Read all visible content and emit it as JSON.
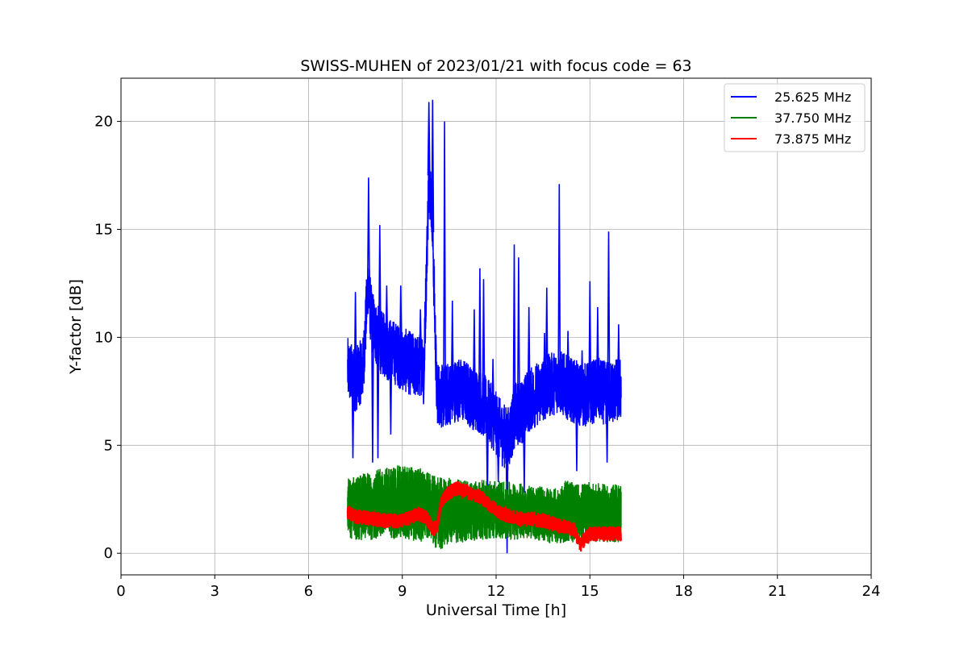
{
  "chart_data": {
    "type": "line",
    "title": "SWISS-MUHEN of 2023/01/21 with focus code = 63",
    "xlabel": "Universal Time [h]",
    "ylabel": "Y-factor [dB]",
    "xlim": [
      0,
      24
    ],
    "ylim": [
      -1.0,
      22.0
    ],
    "xticks": [
      0,
      3,
      6,
      9,
      12,
      15,
      18,
      21,
      24
    ],
    "yticks": [
      0,
      5,
      10,
      15,
      20
    ],
    "grid": true,
    "legend_position": "top-right",
    "series": [
      {
        "name": "25.625 MHz",
        "color": "#0000ff",
        "x": [
          7.25,
          7.5,
          7.75,
          7.9,
          8.0,
          8.15,
          8.3,
          8.5,
          8.75,
          9.0,
          9.25,
          9.5,
          9.7,
          9.85,
          9.95,
          10.1,
          10.3,
          10.5,
          10.75,
          11.0,
          11.25,
          11.5,
          11.75,
          12.0,
          12.2,
          12.4,
          12.6,
          12.8,
          13.0,
          13.25,
          13.5,
          13.75,
          14.0,
          14.25,
          14.5,
          14.75,
          15.0,
          15.25,
          15.5,
          15.75,
          16.0
        ],
        "y": [
          8.5,
          8.0,
          8.6,
          12.5,
          11.0,
          10.2,
          9.8,
          9.5,
          9.3,
          9.0,
          8.8,
          8.6,
          9.0,
          17.5,
          16.0,
          7.5,
          7.2,
          7.4,
          7.6,
          7.5,
          7.2,
          7.0,
          6.6,
          6.0,
          5.5,
          5.3,
          6.4,
          6.5,
          7.0,
          7.3,
          7.6,
          7.8,
          8.0,
          7.7,
          7.5,
          7.3,
          7.4,
          7.6,
          7.4,
          7.5,
          7.6
        ],
        "spikes": [
          {
            "x": 7.5,
            "y": 12.1
          },
          {
            "x": 7.42,
            "y": 4.4
          },
          {
            "x": 7.92,
            "y": 17.4
          },
          {
            "x": 8.05,
            "y": 4.2
          },
          {
            "x": 8.22,
            "y": 4.4
          },
          {
            "x": 8.28,
            "y": 15.2
          },
          {
            "x": 8.5,
            "y": 12.4
          },
          {
            "x": 8.63,
            "y": 5.5
          },
          {
            "x": 8.95,
            "y": 12.4
          },
          {
            "x": 9.58,
            "y": 11.3
          },
          {
            "x": 9.68,
            "y": 6.9
          },
          {
            "x": 9.85,
            "y": 20.9
          },
          {
            "x": 9.97,
            "y": 21.0
          },
          {
            "x": 10.35,
            "y": 20.0
          },
          {
            "x": 10.6,
            "y": 11.7
          },
          {
            "x": 11.3,
            "y": 11.3
          },
          {
            "x": 11.48,
            "y": 13.2
          },
          {
            "x": 11.6,
            "y": 12.7
          },
          {
            "x": 11.72,
            "y": 2.4
          },
          {
            "x": 11.9,
            "y": 9.0
          },
          {
            "x": 12.07,
            "y": 3.3
          },
          {
            "x": 12.35,
            "y": 0.0
          },
          {
            "x": 12.58,
            "y": 14.3
          },
          {
            "x": 12.72,
            "y": 13.7
          },
          {
            "x": 12.9,
            "y": 2.8
          },
          {
            "x": 13.05,
            "y": 11.4
          },
          {
            "x": 13.55,
            "y": 10.2
          },
          {
            "x": 13.62,
            "y": 12.3
          },
          {
            "x": 14.02,
            "y": 17.1
          },
          {
            "x": 14.3,
            "y": 10.3
          },
          {
            "x": 14.58,
            "y": 3.8
          },
          {
            "x": 14.75,
            "y": 9.4
          },
          {
            "x": 15.0,
            "y": 12.6
          },
          {
            "x": 15.25,
            "y": 11.4
          },
          {
            "x": 15.55,
            "y": 4.2
          },
          {
            "x": 15.6,
            "y": 14.9
          },
          {
            "x": 15.92,
            "y": 10.6
          }
        ]
      },
      {
        "name": "37.750 MHz",
        "color": "#008000",
        "x": [
          7.25,
          7.5,
          8.0,
          8.5,
          9.0,
          9.5,
          9.8,
          10.0,
          10.25,
          10.5,
          11.0,
          11.5,
          12.0,
          12.5,
          13.0,
          13.5,
          14.0,
          14.25,
          14.5,
          15.0,
          15.5,
          16.0
        ],
        "y": [
          1.8,
          1.9,
          2.0,
          2.0,
          2.1,
          2.1,
          2.0,
          1.9,
          1.8,
          1.8,
          1.8,
          1.8,
          1.9,
          1.9,
          1.8,
          1.7,
          1.7,
          1.6,
          1.5,
          1.4,
          1.3,
          1.3
        ],
        "band_low": [
          0.7,
          0.6,
          0.6,
          0.7,
          0.6,
          0.5,
          0.6,
          0.3,
          0.1,
          0.4,
          0.5,
          0.6,
          0.7,
          0.6,
          0.7,
          0.5,
          0.4,
          0.5,
          0.5,
          0.5,
          0.5,
          0.5
        ],
        "band_high": [
          3.5,
          3.6,
          3.8,
          4.0,
          4.1,
          4.0,
          3.8,
          3.6,
          3.5,
          3.5,
          3.4,
          3.4,
          3.4,
          3.3,
          3.2,
          3.1,
          3.0,
          3.5,
          3.2,
          3.3,
          3.2,
          3.2
        ]
      },
      {
        "name": "73.875 MHz",
        "color": "#ff0000",
        "x": [
          7.25,
          7.5,
          8.0,
          8.5,
          9.0,
          9.5,
          9.75,
          10.0,
          10.1,
          10.25,
          10.5,
          10.75,
          11.0,
          11.25,
          11.5,
          11.75,
          12.0,
          12.25,
          12.5,
          12.75,
          13.0,
          13.5,
          14.0,
          14.5,
          14.7,
          15.0,
          15.5,
          16.0
        ],
        "y": [
          1.9,
          1.7,
          1.6,
          1.5,
          1.5,
          1.8,
          1.7,
          1.1,
          1.2,
          2.4,
          2.8,
          3.0,
          2.9,
          2.7,
          2.6,
          2.3,
          2.0,
          1.8,
          1.7,
          1.6,
          1.6,
          1.5,
          1.3,
          1.1,
          0.4,
          0.9,
          0.9,
          0.9
        ],
        "amp": 0.35
      }
    ]
  }
}
